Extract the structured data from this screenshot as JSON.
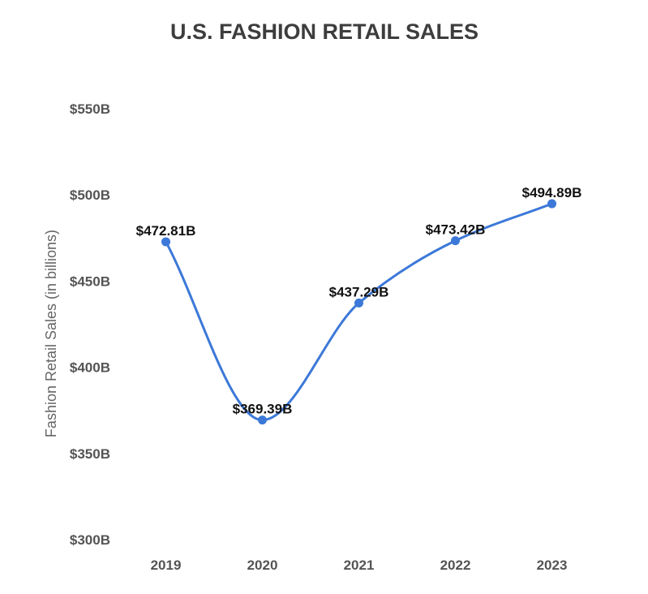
{
  "chart_data": {
    "type": "line",
    "title": "U.S. FASHION RETAIL SALES",
    "xlabel": "",
    "ylabel": "Fashion Retail Sales (in billions)",
    "categories": [
      "2019",
      "2020",
      "2021",
      "2022",
      "2023"
    ],
    "series": [
      {
        "values": [
          472.81,
          369.39,
          437.29,
          473.42,
          494.89
        ],
        "labels": [
          "$472.81B",
          "$369.39B",
          "$437.29B",
          "$473.42B",
          "$494.89B"
        ],
        "color": "#3c78d8"
      }
    ],
    "ylim": [
      300,
      550
    ],
    "yticks": [
      300,
      350,
      400,
      450,
      500,
      550
    ],
    "ytick_labels": [
      "$300B",
      "$350B",
      "$400B",
      "$450B",
      "$500B",
      "$550B"
    ],
    "grid": false,
    "legend": "none",
    "smooth": true
  }
}
